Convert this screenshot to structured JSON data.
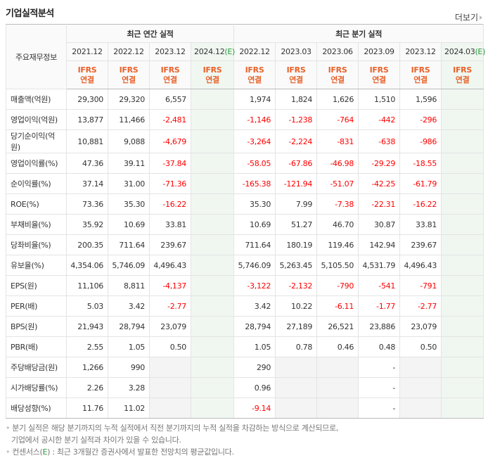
{
  "title": "기업실적분석",
  "more_label": "더보기",
  "header": {
    "row_label": "주요재무정보",
    "annual_group": "최근 연간 실적",
    "quarter_group": "최근 분기 실적",
    "periods": [
      {
        "date": "2021.12",
        "est": ""
      },
      {
        "date": "2022.12",
        "est": ""
      },
      {
        "date": "2023.12",
        "est": ""
      },
      {
        "date": "2024.12",
        "est": "(E)"
      },
      {
        "date": "2022.12",
        "est": ""
      },
      {
        "date": "2023.03",
        "est": ""
      },
      {
        "date": "2023.06",
        "est": ""
      },
      {
        "date": "2023.09",
        "est": ""
      },
      {
        "date": "2023.12",
        "est": ""
      },
      {
        "date": "2024.03",
        "est": "(E)"
      }
    ],
    "ifrs_line1": "IFRS",
    "ifrs_line2": "연결"
  },
  "rows": [
    {
      "label": "매출액(억원)",
      "values": [
        "29,300",
        "29,320",
        "6,557",
        "",
        "1,974",
        "1,824",
        "1,626",
        "1,510",
        "1,596",
        ""
      ]
    },
    {
      "label": "영업이익(억원)",
      "values": [
        "13,877",
        "11,466",
        "-2,481",
        "",
        "-1,146",
        "-1,238",
        "-764",
        "-442",
        "-296",
        ""
      ]
    },
    {
      "label": "당기순이익(억원)",
      "values": [
        "10,881",
        "9,088",
        "-4,679",
        "",
        "-3,264",
        "-2,224",
        "-831",
        "-638",
        "-986",
        ""
      ]
    },
    {
      "label": "영업이익률(%)",
      "values": [
        "47.36",
        "39.11",
        "-37.84",
        "",
        "-58.05",
        "-67.86",
        "-46.98",
        "-29.29",
        "-18.55",
        ""
      ]
    },
    {
      "label": "순이익률(%)",
      "values": [
        "37.14",
        "31.00",
        "-71.36",
        "",
        "-165.38",
        "-121.94",
        "-51.07",
        "-42.25",
        "-61.79",
        ""
      ]
    },
    {
      "label": "ROE(%)",
      "values": [
        "73.36",
        "35.30",
        "-16.22",
        "",
        "35.30",
        "7.99",
        "-7.38",
        "-22.31",
        "-16.22",
        ""
      ]
    },
    {
      "label": "부채비율(%)",
      "values": [
        "35.92",
        "10.69",
        "33.81",
        "",
        "10.69",
        "51.27",
        "46.70",
        "30.87",
        "33.81",
        ""
      ]
    },
    {
      "label": "당좌비율(%)",
      "values": [
        "200.35",
        "711.64",
        "239.67",
        "",
        "711.64",
        "180.19",
        "119.46",
        "142.94",
        "239.67",
        ""
      ]
    },
    {
      "label": "유보율(%)",
      "values": [
        "4,354.06",
        "5,746.09",
        "4,496.43",
        "",
        "5,746.09",
        "5,263.45",
        "5,105.50",
        "4,531.79",
        "4,496.43",
        ""
      ]
    },
    {
      "label": "EPS(원)",
      "values": [
        "11,106",
        "8,811",
        "-4,137",
        "",
        "-3,122",
        "-2,132",
        "-790",
        "-541",
        "-791",
        ""
      ]
    },
    {
      "label": "PER(배)",
      "values": [
        "5.03",
        "3.42",
        "-2.77",
        "",
        "3.42",
        "10.22",
        "-6.11",
        "-1.77",
        "-2.77",
        ""
      ]
    },
    {
      "label": "BPS(원)",
      "values": [
        "21,943",
        "28,794",
        "23,079",
        "",
        "28,794",
        "27,189",
        "26,521",
        "23,886",
        "23,079",
        ""
      ]
    },
    {
      "label": "PBR(배)",
      "values": [
        "2.55",
        "1.05",
        "0.50",
        "",
        "1.05",
        "0.78",
        "0.46",
        "0.48",
        "0.50",
        ""
      ]
    },
    {
      "label": "주당배당금(원)",
      "values": [
        "1,266",
        "990",
        null,
        "",
        "290",
        null,
        null,
        "-",
        null,
        ""
      ]
    },
    {
      "label": "시가배당률(%)",
      "values": [
        "2.26",
        "3.28",
        null,
        "",
        "0.96",
        null,
        null,
        "-",
        null,
        ""
      ]
    },
    {
      "label": "배당성향(%)",
      "values": [
        "11.76",
        "11.02",
        null,
        "",
        "-9.14",
        null,
        null,
        "-",
        null,
        ""
      ]
    }
  ],
  "notes": {
    "line1": "분기 실적은 해당 분기까지의 누적 실적에서 직전 분기까지의 누적 실적을 차감하는 방식으로 계산되므로,",
    "line2": "기업에서 공시한 분기 실적과 차이가 있을 수 있습니다.",
    "line3_prefix": "컨센서스(",
    "line3_e": "E",
    "line3_suffix": ") : 최근 3개월간 증권사에서 발표한 전망치의 평균값입니다."
  },
  "colors": {
    "negative": "#ff0000",
    "ifrs": "#e8622a",
    "estimate_bg": "#f0f7f1",
    "estimate_text": "#2a9a3b"
  }
}
